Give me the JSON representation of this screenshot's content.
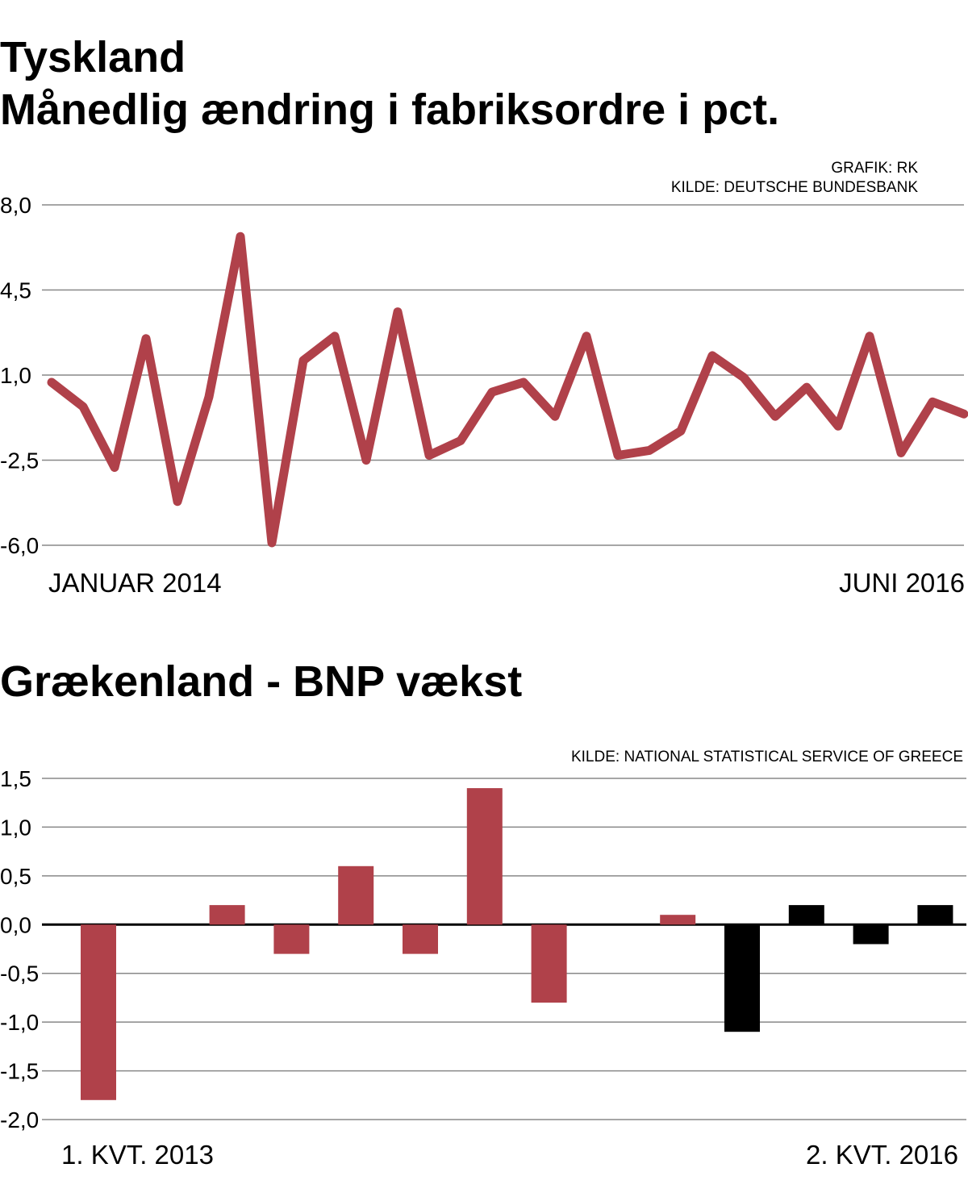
{
  "colors": {
    "line": "#b0414a",
    "bar_red": "#b0414a",
    "bar_black": "#000000",
    "grid": "#888888"
  },
  "charts": [
    {
      "title_line1": "Tyskland",
      "title_line2": "Månedlig ændring i fabriksordre i pct.",
      "credits": [
        "GRAFIK: RK",
        "KILDE: DEUTSCHE BUNDESBANK"
      ]
    },
    {
      "title_line1": "Grækenland - BNP vækst",
      "credits": [
        "KILDE: NATIONAL STATISTICAL SERVICE OF GREECE"
      ]
    }
  ],
  "chart_data": [
    {
      "type": "line",
      "title": "Tyskland – Månedlig ændring i fabriksordre i pct.",
      "ylim": [
        -6.0,
        8.0
      ],
      "yticks": [
        "8,0",
        "4,5",
        "1,0",
        "-2,5",
        "-6,0"
      ],
      "ytick_values": [
        8.0,
        4.5,
        1.0,
        -2.5,
        -6.0
      ],
      "x_start_label": "JANUAR 2014",
      "x_end_label": "JUNI 2016",
      "x": [
        "2014-01",
        "2014-02",
        "2014-03",
        "2014-04",
        "2014-05",
        "2014-06",
        "2014-07",
        "2014-08",
        "2014-09",
        "2014-10",
        "2014-11",
        "2014-12",
        "2015-01",
        "2015-02",
        "2015-03",
        "2015-04",
        "2015-05",
        "2015-06",
        "2015-07",
        "2015-08",
        "2015-09",
        "2015-10",
        "2015-11",
        "2015-12",
        "2016-01",
        "2016-02",
        "2016-03",
        "2016-04",
        "2016-05",
        "2016-06"
      ],
      "values": [
        0.7,
        -0.3,
        -2.8,
        2.5,
        -4.2,
        0.1,
        6.7,
        -5.9,
        1.6,
        2.6,
        -2.5,
        3.6,
        -2.3,
        -1.7,
        0.3,
        0.7,
        -0.7,
        2.6,
        -2.3,
        -2.1,
        -1.3,
        1.8,
        0.9,
        -0.7,
        0.5,
        -1.1,
        2.6,
        -2.2,
        -0.1,
        -0.6
      ],
      "grid": true
    },
    {
      "type": "bar",
      "title": "Grækenland - BNP vækst",
      "ylim": [
        -2.0,
        1.5
      ],
      "yticks": [
        "1,5",
        "1,0",
        "0,5",
        "0,0",
        "-0,5",
        "-1,0",
        "-1,5",
        "-2,0"
      ],
      "ytick_values": [
        1.5,
        1.0,
        0.5,
        0.0,
        -0.5,
        -1.0,
        -1.5,
        -2.0
      ],
      "x_start_label": "1. KVT. 2013",
      "x_end_label": "2. KVT. 2016",
      "categories": [
        "1. kvt. 2013",
        "2. kvt. 2013",
        "3. kvt. 2013",
        "4. kvt. 2013",
        "1. kvt. 2014",
        "2. kvt. 2014",
        "3. kvt. 2014",
        "4. kvt. 2014",
        "1. kvt. 2015",
        "2. kvt. 2015",
        "3. kvt. 2015",
        "4. kvt. 2015",
        "1. kvt. 2016",
        "2. kvt. 2016"
      ],
      "values": [
        -1.8,
        0.0,
        0.2,
        -0.3,
        0.6,
        -0.3,
        1.4,
        -0.8,
        0.0,
        0.1,
        -1.1,
        0.2,
        -0.2,
        0.2
      ],
      "bar_colors": [
        "red",
        "red",
        "red",
        "red",
        "red",
        "red",
        "red",
        "red",
        "red",
        "red",
        "black",
        "black",
        "black",
        "black"
      ],
      "grid": true
    }
  ]
}
